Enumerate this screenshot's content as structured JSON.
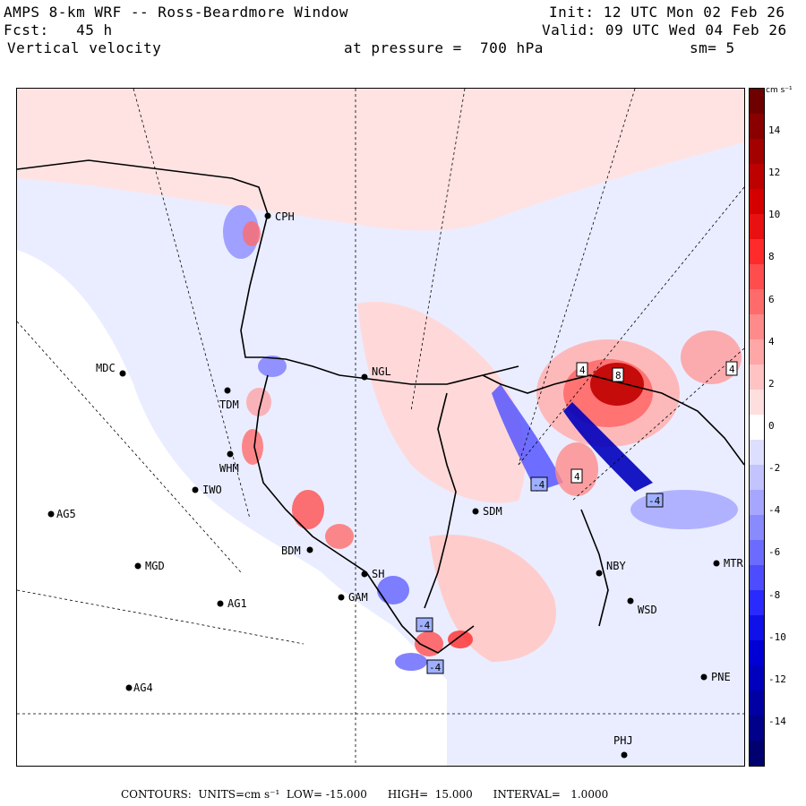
{
  "header": {
    "title": "AMPS 8-km WRF -- Ross-Beardmore Window",
    "forecast_label": "Fcst:",
    "forecast_hours": "45 h",
    "field": "Vertical velocity",
    "init": "Init: 12 UTC Mon 02 Feb 26",
    "valid": "Valid: 09 UTC Wed 04 Feb 26",
    "pressure": "at pressure =  700 hPa",
    "smoothing": "sm= 5"
  },
  "colorbar": {
    "units": "cm s⁻¹",
    "ticks": [
      "14",
      "12",
      "10",
      "8",
      "6",
      "4",
      "2",
      "0",
      "-2",
      "-4",
      "-6",
      "-8",
      "-10",
      "-12",
      "-14"
    ],
    "colors_top_to_bottom": [
      "#6e0000",
      "#8a0000",
      "#a30000",
      "#bd0000",
      "#d40000",
      "#e81010",
      "#ff2a2a",
      "#ff4d4d",
      "#ff6b6b",
      "#ff8a8a",
      "#ffa6a6",
      "#ffc3c3",
      "#ffdede",
      "#ffffff",
      "#dedeff",
      "#c3c3ff",
      "#a6a6ff",
      "#8a8aff",
      "#6b6bff",
      "#4d4dff",
      "#2a2aff",
      "#1010e8",
      "#0000d4",
      "#0000bd",
      "#0000a3",
      "#00008a",
      "#00006e"
    ]
  },
  "stations": [
    {
      "id": "CPH"
    },
    {
      "id": "MDC"
    },
    {
      "id": "NGL"
    },
    {
      "id": "TDM"
    },
    {
      "id": "WHM"
    },
    {
      "id": "IWO"
    },
    {
      "id": "AG5"
    },
    {
      "id": "SDM"
    },
    {
      "id": "BDM"
    },
    {
      "id": "MGD"
    },
    {
      "id": "SH"
    },
    {
      "id": "GAM"
    },
    {
      "id": "AG1"
    },
    {
      "id": "NBY"
    },
    {
      "id": "WSD"
    },
    {
      "id": "MTR"
    },
    {
      "id": "AG4"
    },
    {
      "id": "PNE"
    },
    {
      "id": "PHJ"
    }
  ],
  "contour_labels": [
    "4",
    "8",
    "4",
    "-4",
    "-4",
    "4",
    "-4",
    "-4"
  ],
  "footer": {
    "contours": "CONTOURS:  UNITS=cm s⁻¹  LOW= -15.000      HIGH=  15.000      INTERVAL=   1.0000"
  }
}
